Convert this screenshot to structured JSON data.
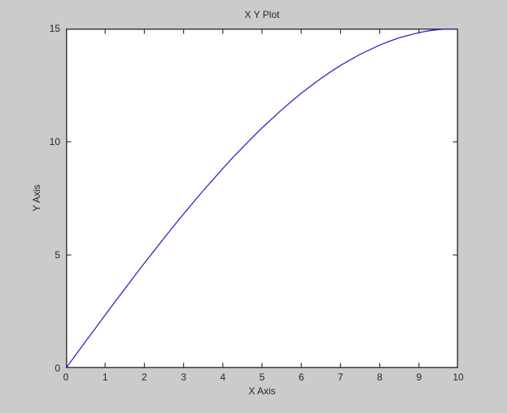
{
  "figure": {
    "background": "#cbcbcb",
    "plot_background": "#ffffff",
    "axis_color": "#3a3a3a",
    "text_color": "#262626"
  },
  "chart_data": {
    "type": "line",
    "title": "X Y Plot",
    "xlabel": "X Axis",
    "ylabel": "Y Axis",
    "xlim": [
      0,
      10
    ],
    "ylim": [
      0,
      15
    ],
    "xticks": [
      0,
      1,
      2,
      3,
      4,
      5,
      6,
      7,
      8,
      9,
      10
    ],
    "yticks": [
      0,
      5,
      10,
      15
    ],
    "grid": false,
    "legend_position": "none",
    "box": true,
    "tick_direction": "in",
    "series": [
      {
        "color": "#2b2bc8",
        "x": [
          0,
          0.25,
          0.5,
          0.75,
          1,
          1.25,
          1.5,
          1.75,
          2,
          2.25,
          2.5,
          2.75,
          3,
          3.25,
          3.5,
          3.75,
          4,
          4.25,
          4.5,
          4.75,
          5,
          5.25,
          5.5,
          5.75,
          6,
          6.25,
          6.5,
          6.75,
          7,
          7.25,
          7.5,
          7.75,
          8,
          8.25,
          8.5,
          8.75,
          9,
          9.25,
          9.5,
          9.75,
          10
        ],
        "y": [
          0,
          0.59,
          1.18,
          1.76,
          2.35,
          2.93,
          3.5,
          4.07,
          4.64,
          5.19,
          5.74,
          6.28,
          6.81,
          7.33,
          7.84,
          8.33,
          8.82,
          9.29,
          9.74,
          10.18,
          10.61,
          11.01,
          11.41,
          11.78,
          12.14,
          12.47,
          12.79,
          13.09,
          13.37,
          13.62,
          13.86,
          14.07,
          14.27,
          14.44,
          14.59,
          14.71,
          14.82,
          14.9,
          14.95,
          14.99,
          15
        ]
      }
    ]
  }
}
